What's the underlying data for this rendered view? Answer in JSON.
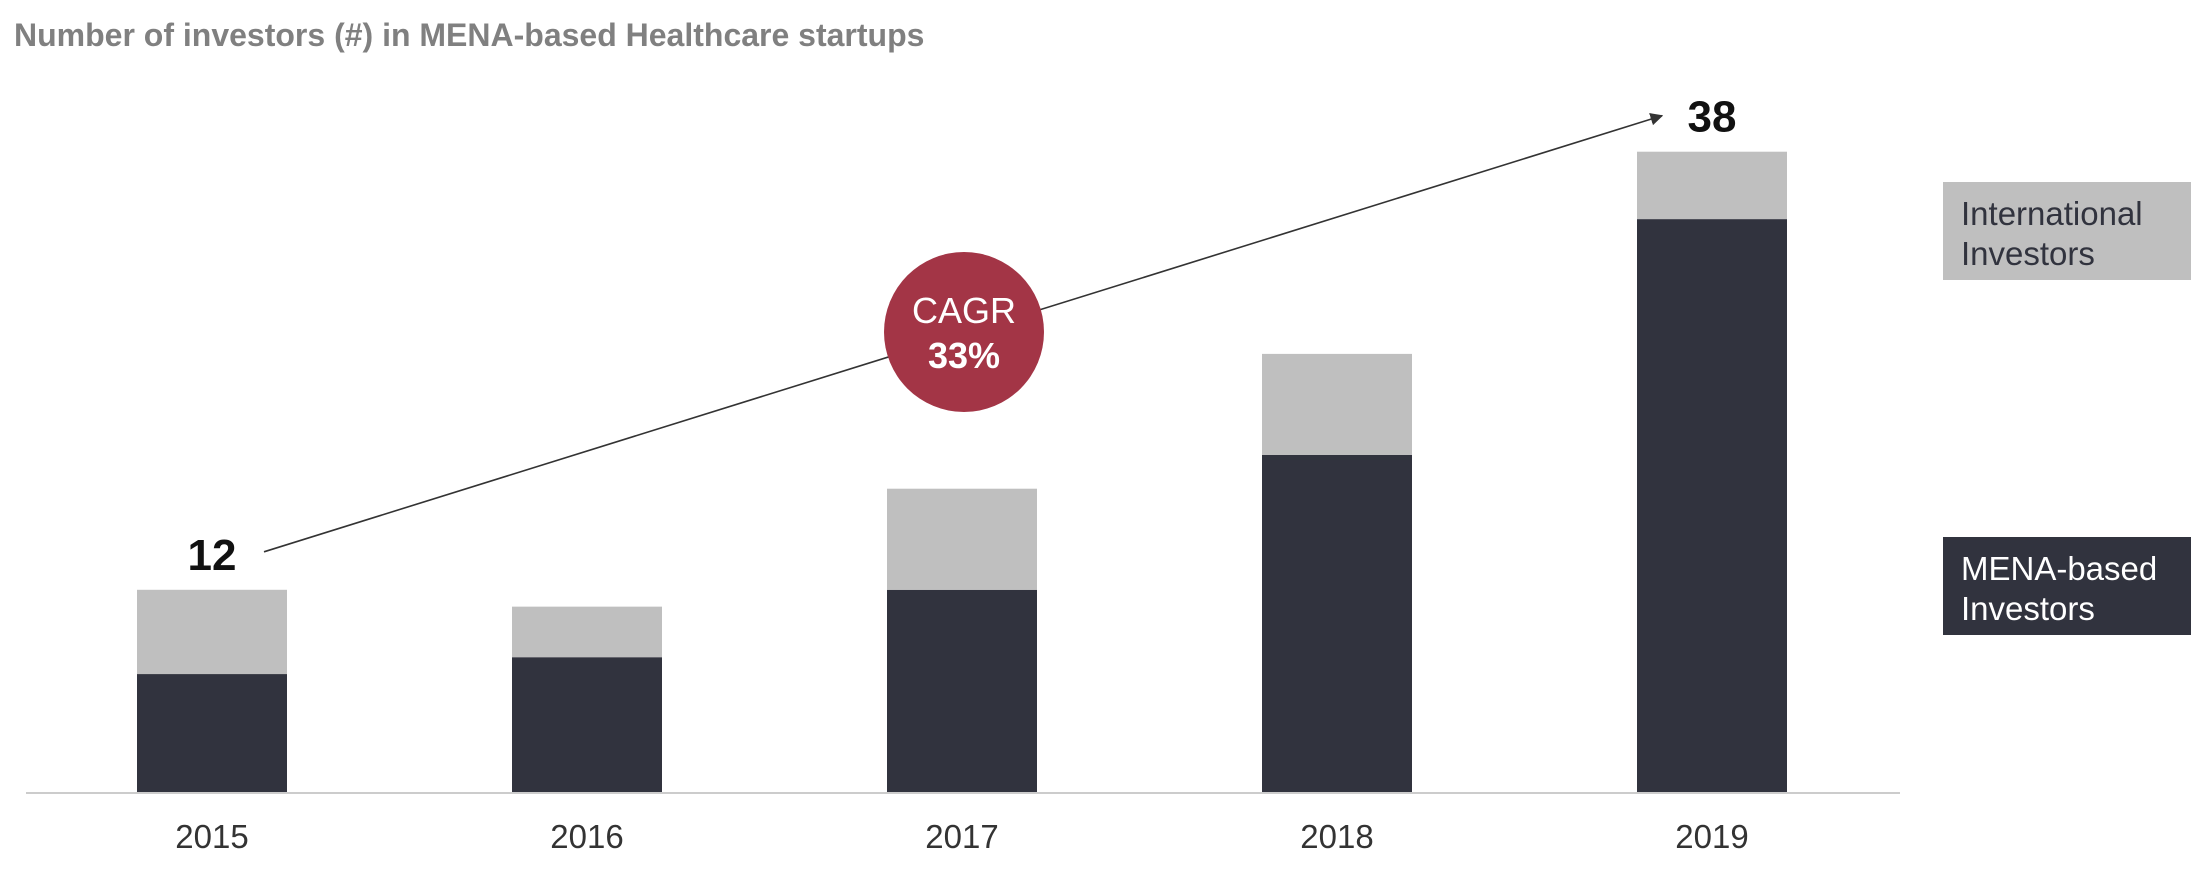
{
  "chart_data": {
    "type": "bar",
    "stacked": true,
    "title": "Number of investors (#) in MENA-based Healthcare startups",
    "xlabel": "",
    "ylabel": "",
    "categories": [
      "2015",
      "2016",
      "2017",
      "2018",
      "2019"
    ],
    "series": [
      {
        "name": "MENA-based Investors",
        "color": "#31333e",
        "values": [
          7,
          8,
          12,
          20,
          34
        ]
      },
      {
        "name": "International Investors",
        "color": "#bfbfbf",
        "values": [
          5,
          3,
          6,
          6,
          4
        ]
      }
    ],
    "ylim": [
      0,
      40
    ],
    "grid": false,
    "legend": {
      "position": "right",
      "entries": [
        {
          "lines": [
            "International",
            "Investors"
          ],
          "color": "#bfbfbf",
          "text_color": "#31333e"
        },
        {
          "lines": [
            "MENA-based",
            "Investors"
          ],
          "color": "#31333e",
          "text_color": "#ffffff"
        }
      ]
    },
    "annotations": {
      "totals": [
        {
          "category": "2015",
          "label": "12"
        },
        {
          "category": "2019",
          "label": "38"
        }
      ],
      "cagr": {
        "label": "CAGR",
        "value": "33%",
        "color": "#a33546"
      }
    }
  },
  "colors": {
    "title": "#808080",
    "axis": "#cccccc",
    "tick": "#333333",
    "trend_line": "#333333",
    "total": "#111111",
    "cagr_text": "#ffffff"
  }
}
